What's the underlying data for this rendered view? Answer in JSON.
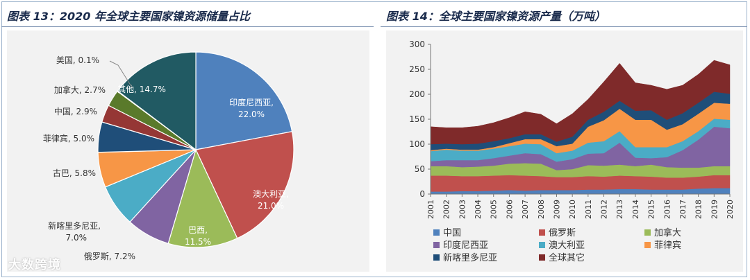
{
  "watermark": {
    "text": "大数跨境"
  },
  "chart_data": [
    {
      "type": "pie",
      "title": "图表 13：2020 年全球主要国家镍资源储量占比",
      "slices": [
        {
          "label": "印度尼西亚",
          "value": 22.0,
          "value_label": "22.0%",
          "color": "#4f81bd"
        },
        {
          "label": "澳大利亚",
          "value": 21.0,
          "value_label": "21.0%",
          "color": "#c0504d"
        },
        {
          "label": "巴西",
          "value": 11.5,
          "value_label": "11.5%",
          "color": "#9bbb59"
        },
        {
          "label": "俄罗斯",
          "value": 7.2,
          "value_label": "7.2%",
          "color": "#8064a2"
        },
        {
          "label": "新喀里多尼亚",
          "value": 7.0,
          "value_label": "7.0%",
          "color": "#4bacc6"
        },
        {
          "label": "古巴",
          "value": 5.8,
          "value_label": "5.8%",
          "color": "#f79646"
        },
        {
          "label": "菲律宾",
          "value": 5.0,
          "value_label": "5.0%",
          "color": "#1f4e79"
        },
        {
          "label": "中国",
          "value": 2.9,
          "value_label": "2.9%",
          "color": "#953735"
        },
        {
          "label": "加拿大",
          "value": 2.7,
          "value_label": "2.7%",
          "color": "#5a7a2b"
        },
        {
          "label": "美国",
          "value": 0.1,
          "value_label": "0.1%",
          "color": "#60497a"
        },
        {
          "label": "其他",
          "value": 14.7,
          "value_label": "14.7%",
          "color": "#215a63"
        }
      ]
    },
    {
      "type": "area",
      "stacked": true,
      "title": "图表 14：全球主要国家镍资源产量（万吨）",
      "x": [
        "2001",
        "2002",
        "2003",
        "2004",
        "2005",
        "2006",
        "2007",
        "2008",
        "2009",
        "2010",
        "2011",
        "2012",
        "2013",
        "2014",
        "2015",
        "2016",
        "2017",
        "2018",
        "2019",
        "2020"
      ],
      "ylim": [
        0,
        300
      ],
      "yticks": [
        0,
        50,
        100,
        150,
        200,
        250,
        300
      ],
      "series": [
        {
          "name": "中国",
          "color": "#4f81bd",
          "values": [
            5,
            5,
            6,
            6,
            7,
            8,
            7,
            8,
            8,
            8,
            9,
            9,
            10,
            10,
            9,
            9,
            9,
            11,
            12,
            12
          ]
        },
        {
          "name": "俄罗斯",
          "color": "#c0504d",
          "values": [
            32,
            32,
            30,
            30,
            30,
            30,
            30,
            28,
            26,
            26,
            27,
            26,
            27,
            26,
            26,
            24,
            24,
            24,
            26,
            26
          ]
        },
        {
          "name": "加拿大",
          "color": "#9bbb59",
          "values": [
            19,
            19,
            18,
            19,
            20,
            23,
            25,
            25,
            14,
            16,
            22,
            22,
            22,
            20,
            24,
            21,
            20,
            18,
            18,
            18
          ]
        },
        {
          "name": "印度尼西亚",
          "color": "#8064a2",
          "values": [
            10,
            12,
            14,
            13,
            15,
            16,
            20,
            19,
            17,
            20,
            23,
            25,
            44,
            17,
            13,
            20,
            35,
            56,
            79,
            76
          ]
        },
        {
          "name": "澳大利亚",
          "color": "#4bacc6",
          "values": [
            20,
            21,
            19,
            19,
            19,
            19,
            19,
            20,
            17,
            17,
            22,
            24,
            23,
            21,
            22,
            20,
            18,
            17,
            16,
            17
          ]
        },
        {
          "name": "菲律宾",
          "color": "#f79646",
          "values": [
            2,
            2,
            2,
            2,
            3,
            6,
            9,
            10,
            14,
            14,
            32,
            42,
            45,
            55,
            55,
            35,
            34,
            35,
            32,
            32
          ]
        },
        {
          "name": "新喀里多尼亚",
          "color": "#1f4e79",
          "values": [
            12,
            10,
            11,
            12,
            12,
            10,
            10,
            10,
            9,
            14,
            14,
            17,
            16,
            18,
            19,
            20,
            22,
            22,
            22,
            20
          ]
        },
        {
          "name": "全球其它",
          "color": "#7f2a2a",
          "values": [
            35,
            32,
            33,
            35,
            37,
            41,
            45,
            40,
            36,
            46,
            41,
            60,
            75,
            56,
            50,
            61,
            56,
            57,
            63,
            58
          ]
        }
      ]
    }
  ]
}
